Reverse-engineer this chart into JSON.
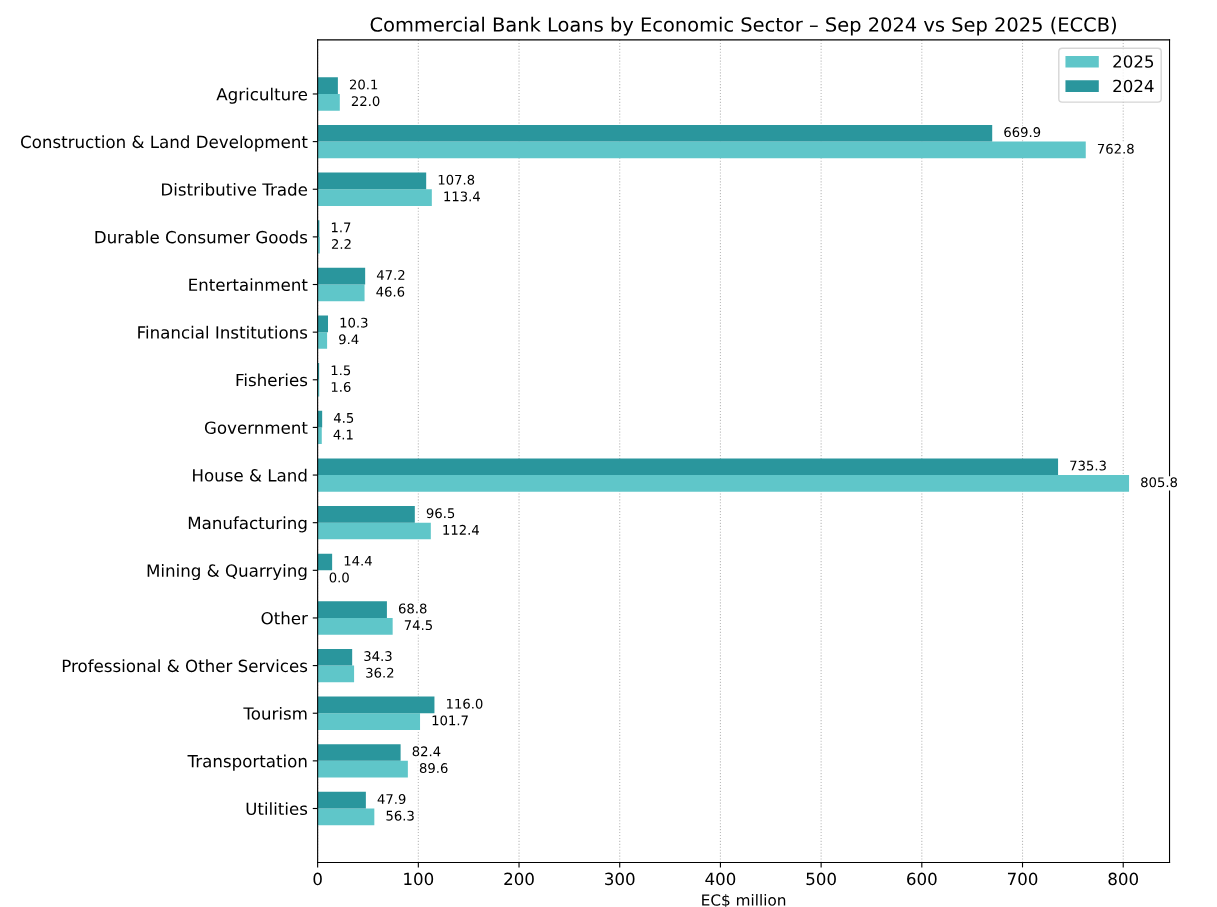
{
  "chart_data": {
    "type": "bar",
    "orientation": "horizontal",
    "title": "Commercial Bank Loans by Economic Sector – Sep 2024 vs Sep 2025 (ECCB)",
    "xlabel": "EC$ million",
    "categories": [
      "Agriculture",
      "Construction & Land Development",
      "Distributive Trade",
      "Durable Consumer Goods",
      "Entertainment",
      "Financial Institutions",
      "Fisheries",
      "Government",
      "House & Land",
      "Manufacturing",
      "Mining & Quarrying",
      "Other",
      "Professional & Other Services",
      "Tourism",
      "Transportation",
      "Utilities"
    ],
    "series": [
      {
        "name": "2025",
        "color": "#5fc6c9",
        "values": [
          22.0,
          762.8,
          113.4,
          2.2,
          46.6,
          9.4,
          1.6,
          4.1,
          805.8,
          112.4,
          0.0,
          74.5,
          36.2,
          101.7,
          89.6,
          56.3
        ],
        "value_labels": [
          "22.0",
          "762.8",
          "113.4",
          "2.2",
          "46.6",
          "9.4",
          "1.6",
          "4.1",
          "805.8",
          "112.4",
          "0.0",
          "74.5",
          "36.2",
          "101.7",
          "89.6",
          "56.3"
        ]
      },
      {
        "name": "2024",
        "color": "#2a969d",
        "values": [
          20.1,
          669.9,
          107.8,
          1.7,
          47.2,
          10.3,
          1.5,
          4.5,
          735.3,
          96.5,
          14.4,
          68.8,
          34.3,
          116.0,
          82.4,
          47.9
        ],
        "value_labels": [
          "20.1",
          "669.9",
          "107.8",
          "1.7",
          "47.2",
          "10.3",
          "1.5",
          "4.5",
          "735.3",
          "96.5",
          "14.4",
          "68.8",
          "34.3",
          "116.0",
          "82.4",
          "47.9"
        ]
      }
    ],
    "xlim": [
      0,
      846
    ],
    "xticks": [
      0,
      100,
      200,
      300,
      400,
      500,
      600,
      700,
      800
    ],
    "grid": "x",
    "legend": "top right"
  }
}
